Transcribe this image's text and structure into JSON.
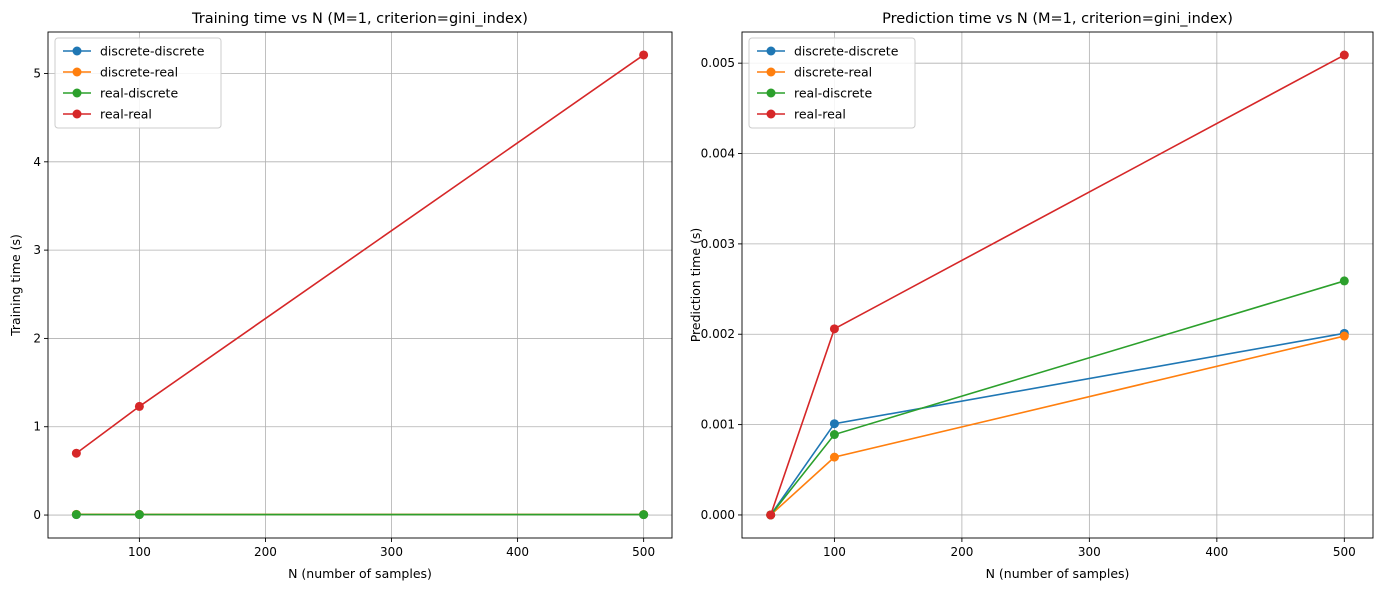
{
  "chart_data": [
    {
      "type": "line",
      "title": "Training time vs N (M=1, criterion=gini_index)",
      "xlabel": "N (number of samples)",
      "ylabel": "Training time (s)",
      "x": [
        50,
        100,
        500
      ],
      "xlim": [
        27.5,
        522.5
      ],
      "ylim": [
        -0.26,
        5.47
      ],
      "xticks": [
        100,
        200,
        300,
        400,
        500
      ],
      "xtick_labels": [
        "100",
        "200",
        "300",
        "400",
        "500"
      ],
      "yticks": [
        0,
        1,
        2,
        3,
        4,
        5
      ],
      "ytick_labels": [
        "0",
        "1",
        "2",
        "3",
        "4",
        "5"
      ],
      "grid": true,
      "legend_position": "top-left",
      "series": [
        {
          "name": "discrete-discrete",
          "color": "#1f77b4",
          "values": [
            0.005,
            0.005,
            0.004
          ]
        },
        {
          "name": "discrete-real",
          "color": "#ff7f0e",
          "values": [
            0.008,
            0.007,
            0.006
          ]
        },
        {
          "name": "real-discrete",
          "color": "#2ca02c",
          "values": [
            0.006,
            0.006,
            0.005
          ]
        },
        {
          "name": "real-real",
          "color": "#d62728",
          "values": [
            0.7,
            1.23,
            5.21
          ]
        }
      ]
    },
    {
      "type": "line",
      "title": "Prediction time vs N (M=1, criterion=gini_index)",
      "xlabel": "N (number of samples)",
      "ylabel": "Prediction time (s)",
      "x": [
        50,
        100,
        500
      ],
      "xlim": [
        27.5,
        522.5
      ],
      "ylim": [
        -0.000255,
        0.005345
      ],
      "xticks": [
        100,
        200,
        300,
        400,
        500
      ],
      "xtick_labels": [
        "100",
        "200",
        "300",
        "400",
        "500"
      ],
      "yticks": [
        0,
        0.001,
        0.002,
        0.003,
        0.004,
        0.005
      ],
      "ytick_labels": [
        "0.000",
        "0.001",
        "0.002",
        "0.003",
        "0.004",
        "0.005"
      ],
      "grid": true,
      "legend_position": "top-left",
      "series": [
        {
          "name": "discrete-discrete",
          "color": "#1f77b4",
          "values": [
            0.0,
            0.00101,
            0.00201
          ]
        },
        {
          "name": "discrete-real",
          "color": "#ff7f0e",
          "values": [
            0.0,
            0.00064,
            0.00198
          ]
        },
        {
          "name": "real-discrete",
          "color": "#2ca02c",
          "values": [
            0.0,
            0.00089,
            0.00259
          ]
        },
        {
          "name": "real-real",
          "color": "#d62728",
          "values": [
            0.0,
            0.00206,
            0.00509
          ]
        }
      ]
    }
  ]
}
